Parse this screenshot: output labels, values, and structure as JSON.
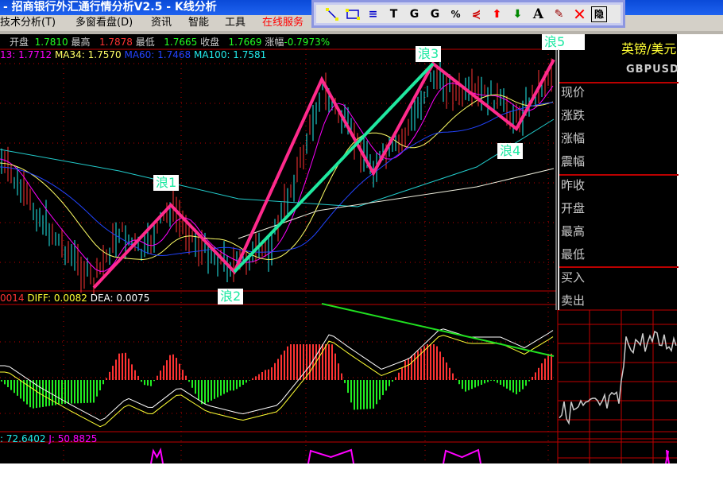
{
  "window": {
    "title": "- 招商银行外汇通行情分析V2.5 - K线分析"
  },
  "menu": [
    "技术分析(T)",
    "多窗看盘(D)",
    "资讯",
    "智能",
    "工具",
    "在线服务"
  ],
  "toolbar": {
    "icons": [
      "line-tool-icon",
      "rectangle-tool-icon",
      "parallel-lines-icon",
      "bar-t-icon",
      "g-lines-icon",
      "bar-g-icon",
      "percent-lines-icon",
      "fan-lines-icon",
      "up-arrow-icon",
      "down-arrow-icon",
      "text-tool-icon",
      "eraser-icon",
      "delete-icon"
    ],
    "hide_label": "隐",
    "text_label": "A"
  },
  "quote": {
    "open_label": "开盘",
    "open": "1.7810",
    "high_label": "最高",
    "high": "1.7878",
    "low_label": "最低",
    "low": "1.7665",
    "close_label": "收盘",
    "close": "1.7669",
    "change_label": "涨幅",
    "change": "-0.7973%"
  },
  "ma": {
    "ma13": "13: 1.7712",
    "ma34": "MA34: 1.7570",
    "ma60": "MA60: 1.7468",
    "ma100": "MA100: 1.7581"
  },
  "waves": [
    "浪1",
    "浪2",
    "浪3",
    "浪4",
    "浪5"
  ],
  "macd": {
    "prefix": "0014",
    "diff": "DIFF: 0.0082",
    "dea": "DEA: 0.0075"
  },
  "kdj": {
    "d": ": 72.6402",
    "j": "J: 50.8825"
  },
  "side": {
    "name": "英镑/美元",
    "code": "GBPUSD",
    "labels": [
      "现价",
      "涨跌",
      "涨幅",
      "震幅",
      "昨收",
      "开盘",
      "最高",
      "最低",
      "买入",
      "卖出"
    ]
  },
  "colors": {
    "wave_line": "#ff2a8c",
    "trend_line": "#20e8a0",
    "macd_trend": "#20e020",
    "bg": "#000000",
    "grid": "#c00000"
  }
}
